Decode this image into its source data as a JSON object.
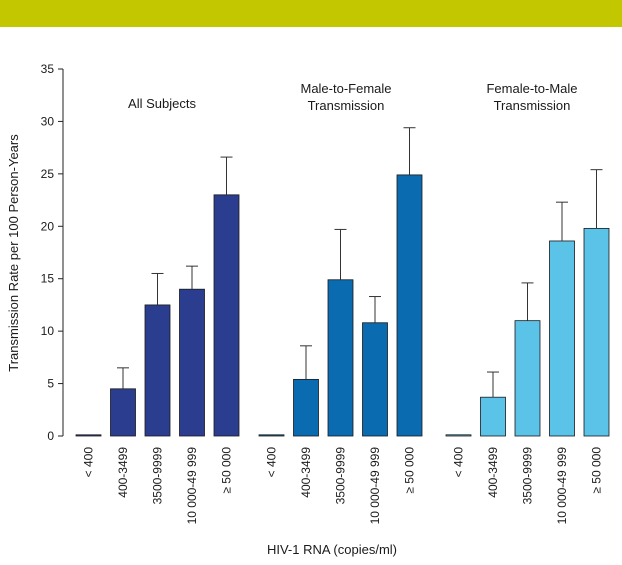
{
  "header_band": {
    "color": "#c3c700"
  },
  "chart_data": {
    "type": "bar",
    "xlabel": "HIV-1 RNA (copies/ml)",
    "ylabel": "Transmission Rate per 100 Person-Years",
    "ylim": [
      0,
      35
    ],
    "yticks": [
      0,
      5,
      10,
      15,
      20,
      25,
      30,
      35
    ],
    "grid": false,
    "error_bars": true,
    "categories": [
      "< 400",
      "400-3499",
      "3500-9999",
      "10 000-49 999",
      "≥ 50 000"
    ],
    "groups": [
      {
        "title": [
          "All Subjects"
        ],
        "color": "#2b3d8f",
        "values": [
          0,
          4.5,
          12.5,
          14.0,
          23.0
        ],
        "error_upper": [
          0,
          6.5,
          15.5,
          16.2,
          26.6
        ]
      },
      {
        "title": [
          "Male-to-Female",
          "Transmission"
        ],
        "color": "#0a6bb0",
        "values": [
          0,
          5.4,
          14.9,
          10.8,
          24.9
        ],
        "error_upper": [
          0,
          8.6,
          19.7,
          13.3,
          29.4
        ]
      },
      {
        "title": [
          "Female-to-Male",
          "Transmission"
        ],
        "color": "#5bc2e8",
        "values": [
          0,
          3.7,
          11.0,
          18.6,
          19.8
        ],
        "error_upper": [
          0,
          6.1,
          14.6,
          22.3,
          25.4
        ]
      }
    ]
  }
}
